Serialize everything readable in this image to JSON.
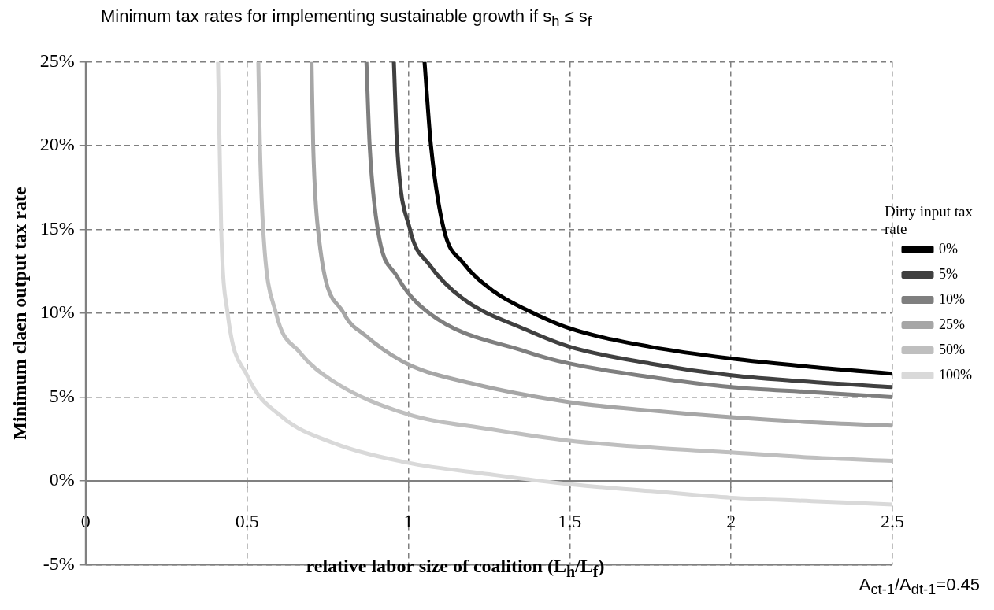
{
  "chart_data": {
    "type": "line",
    "title": "Minimum tax rates for implementing sustainable growth if s$_{h}$ ≤ s$_{f}$",
    "xlabel": "relative labor size of coalition (L$_{h}$/L$_{f}$)",
    "ylabel": "Minimum claen output tax rate",
    "legend_title": "Dirty input tax rate",
    "annotations": [
      "A$_{ct-1}$/A$_{dt-1}$=0.45"
    ],
    "xlim": [
      0,
      2.5
    ],
    "xticks": [
      0,
      0.5,
      1,
      1.5,
      2,
      2.5
    ],
    "ylim": [
      -5,
      25
    ],
    "yticks": [
      {
        "value": -5,
        "label": "-5%"
      },
      {
        "value": 0,
        "label": "0%"
      },
      {
        "value": 5,
        "label": "5%"
      },
      {
        "value": 10,
        "label": "10%"
      },
      {
        "value": 15,
        "label": "15%"
      },
      {
        "value": 20,
        "label": "20%"
      },
      {
        "value": 25,
        "label": "25%"
      }
    ],
    "grid": true,
    "legend": "right",
    "marker": "none",
    "line_style": "solid",
    "series": [
      {
        "name": "0%",
        "color": "#000000",
        "x": [
          1.05,
          1.07,
          1.11,
          1.17,
          1.265,
          1.367,
          1.5,
          1.75,
          2,
          2.25,
          2.5
        ],
        "values": [
          25,
          20,
          15,
          13,
          11.3,
          10.2,
          9.1,
          8.0,
          7.3,
          6.8,
          6.4
        ]
      },
      {
        "name": "5%",
        "color": "#404040",
        "x": [
          0.955,
          0.965,
          1.005,
          1.065,
          1.167,
          1.367,
          1.5,
          1.75,
          2,
          2.25,
          2.5
        ],
        "values": [
          25,
          20,
          15,
          12.9,
          10.9,
          9.0,
          8.0,
          7.0,
          6.3,
          5.9,
          5.6
        ]
      },
      {
        "name": "10%",
        "color": "#7f7f7f",
        "x": [
          0.87,
          0.88,
          0.905,
          0.965,
          1.065,
          1.367,
          1.5,
          1.75,
          2,
          2.25,
          2.5
        ],
        "values": [
          25,
          20,
          15,
          12.2,
          10.0,
          7.7,
          7.0,
          6.2,
          5.6,
          5.3,
          5.0
        ]
      },
      {
        "name": "25%",
        "color": "#a6a6a6",
        "x": [
          0.7,
          0.705,
          0.72,
          0.8,
          0.865,
          0.995,
          1.2,
          1.5,
          1.75,
          2,
          2.25,
          2.5
        ],
        "values": [
          25,
          20,
          15,
          10,
          8.7,
          7.0,
          5.8,
          4.7,
          4.2,
          3.8,
          3.5,
          3.3
        ]
      },
      {
        "name": "50%",
        "color": "#bfbfbf",
        "x": [
          0.535,
          0.54,
          0.55,
          0.59,
          0.662,
          0.763,
          0.995,
          1.25,
          1.5,
          1.75,
          2,
          2.25,
          2.5
        ],
        "values": [
          25,
          20,
          15,
          10,
          7.7,
          6.0,
          4.0,
          3.1,
          2.4,
          2.0,
          1.7,
          1.4,
          1.2
        ]
      },
      {
        "name": "100%",
        "color": "#d9d9d9",
        "x": [
          0.41,
          0.415,
          0.42,
          0.44,
          0.5,
          0.61,
          0.763,
          0.995,
          1.25,
          1.5,
          1.75,
          2,
          2.25,
          2.5
        ],
        "values": [
          25,
          20,
          15,
          10,
          6.3,
          3.8,
          2.3,
          1.1,
          0.4,
          -0.2,
          -0.6,
          -1.0,
          -1.2,
          -1.4
        ]
      }
    ]
  }
}
